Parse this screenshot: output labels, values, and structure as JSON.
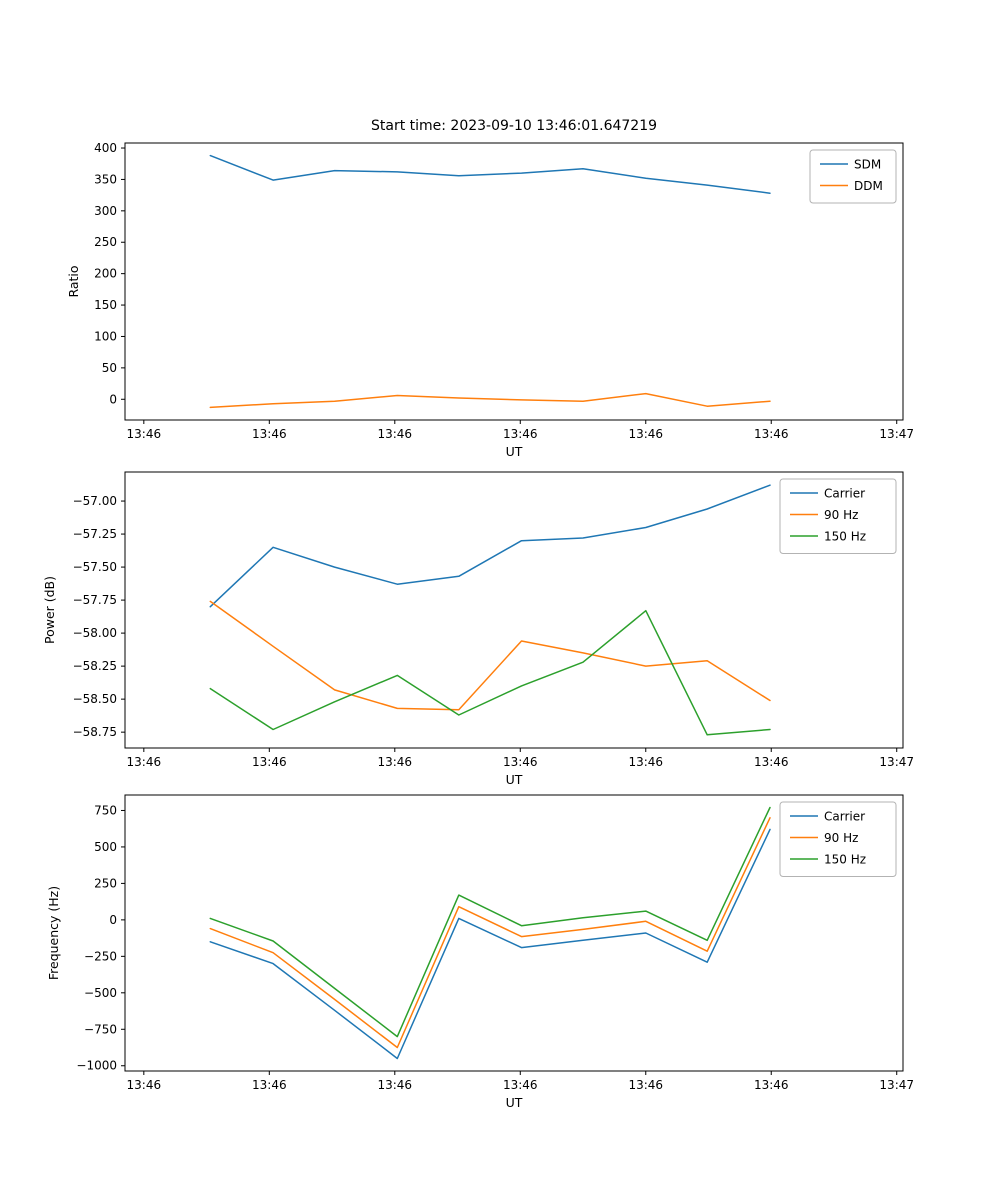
{
  "figure": {
    "background": "#ffffff"
  },
  "chart_data": [
    {
      "type": "line",
      "name": "ratio",
      "title": "Start time: 2023-09-10 13:46:01.647219",
      "xlabel": "UT",
      "ylabel": "Ratio",
      "x_units": "seconds after 13:46:00 UT",
      "x": [
        5.3,
        10.3,
        15.2,
        20.2,
        25.1,
        30.1,
        35.0,
        40.0,
        44.9,
        49.9
      ],
      "series": [
        {
          "name": "SDM",
          "color": "#1f77b4",
          "values": [
            388,
            349,
            364,
            362,
            356,
            360,
            367,
            352,
            341,
            328
          ]
        },
        {
          "name": "DDM",
          "color": "#ff7f0e",
          "values": [
            -13,
            -7,
            -3,
            6,
            2,
            -1,
            -3,
            9,
            -11,
            -3
          ]
        }
      ],
      "xlim": [
        -1.5,
        60.5
      ],
      "ylim": [
        -33,
        408
      ],
      "xticks": [
        {
          "v": 0,
          "label": "13:46"
        },
        {
          "v": 10,
          "label": "13:46"
        },
        {
          "v": 20,
          "label": "13:46"
        },
        {
          "v": 30,
          "label": "13:46"
        },
        {
          "v": 40,
          "label": "13:46"
        },
        {
          "v": 50,
          "label": "13:46"
        },
        {
          "v": 60,
          "label": "13:47"
        }
      ],
      "yticks": [
        {
          "v": 0,
          "label": "0"
        },
        {
          "v": 50,
          "label": "50"
        },
        {
          "v": 100,
          "label": "100"
        },
        {
          "v": 150,
          "label": "150"
        },
        {
          "v": 200,
          "label": "200"
        },
        {
          "v": 250,
          "label": "250"
        },
        {
          "v": 300,
          "label": "300"
        },
        {
          "v": 350,
          "label": "350"
        },
        {
          "v": 400,
          "label": "400"
        }
      ],
      "legend": {
        "position": "upper right",
        "labels": [
          "SDM",
          "DDM"
        ]
      },
      "grid": false
    },
    {
      "type": "line",
      "name": "power",
      "title": "",
      "xlabel": "UT",
      "ylabel": "Power (dB)",
      "x_units": "seconds after 13:46:00 UT",
      "x": [
        5.3,
        10.3,
        15.2,
        20.2,
        25.1,
        30.1,
        35.0,
        40.0,
        44.9,
        49.9
      ],
      "series": [
        {
          "name": "Carrier",
          "color": "#1f77b4",
          "values": [
            -57.8,
            -57.35,
            -57.5,
            -57.63,
            -57.57,
            -57.3,
            -57.28,
            -57.2,
            -57.06,
            -56.88
          ]
        },
        {
          "name": "90 Hz",
          "color": "#ff7f0e",
          "values": [
            -57.76,
            -58.1,
            -58.43,
            -58.57,
            -58.58,
            -58.06,
            -58.15,
            -58.25,
            -58.21,
            -58.51
          ]
        },
        {
          "name": "150 Hz",
          "color": "#2ca02c",
          "values": [
            -58.42,
            -58.73,
            -58.52,
            -58.32,
            -58.62,
            -58.4,
            -58.22,
            -57.83,
            -58.77,
            -58.73
          ]
        }
      ],
      "xlim": [
        -1.5,
        60.5
      ],
      "ylim": [
        -58.87,
        -56.78
      ],
      "xticks": [
        {
          "v": 0,
          "label": "13:46"
        },
        {
          "v": 10,
          "label": "13:46"
        },
        {
          "v": 20,
          "label": "13:46"
        },
        {
          "v": 30,
          "label": "13:46"
        },
        {
          "v": 40,
          "label": "13:46"
        },
        {
          "v": 50,
          "label": "13:46"
        },
        {
          "v": 60,
          "label": "13:47"
        }
      ],
      "yticks": [
        {
          "v": -57.0,
          "label": "−57.00"
        },
        {
          "v": -57.25,
          "label": "−57.25"
        },
        {
          "v": -57.5,
          "label": "−57.50"
        },
        {
          "v": -57.75,
          "label": "−57.75"
        },
        {
          "v": -58.0,
          "label": "−58.00"
        },
        {
          "v": -58.25,
          "label": "−58.25"
        },
        {
          "v": -58.5,
          "label": "−58.50"
        },
        {
          "v": -58.75,
          "label": "−58.75"
        }
      ],
      "legend": {
        "position": "upper right",
        "labels": [
          "Carrier",
          "90 Hz",
          "150 Hz"
        ]
      },
      "grid": false
    },
    {
      "type": "line",
      "name": "frequency",
      "title": "",
      "xlabel": "UT",
      "ylabel": "Frequency (Hz)",
      "x_units": "seconds after 13:46:00 UT",
      "x": [
        5.3,
        10.3,
        15.2,
        20.2,
        25.1,
        30.1,
        35.0,
        40.0,
        44.9,
        49.9
      ],
      "series": [
        {
          "name": "Carrier",
          "color": "#1f77b4",
          "values": [
            -150,
            -300,
            -620,
            -950,
            10,
            -190,
            -140,
            -90,
            -290,
            620
          ]
        },
        {
          "name": "90 Hz",
          "color": "#ff7f0e",
          "values": [
            -60,
            -225,
            -545,
            -875,
            90,
            -115,
            -65,
            -10,
            -215,
            700
          ]
        },
        {
          "name": "150 Hz",
          "color": "#2ca02c",
          "values": [
            10,
            -145,
            -470,
            -800,
            170,
            -40,
            15,
            60,
            -140,
            770
          ]
        }
      ],
      "xlim": [
        -1.5,
        60.5
      ],
      "ylim": [
        -1036,
        856
      ],
      "xticks": [
        {
          "v": 0,
          "label": "13:46"
        },
        {
          "v": 10,
          "label": "13:46"
        },
        {
          "v": 20,
          "label": "13:46"
        },
        {
          "v": 30,
          "label": "13:46"
        },
        {
          "v": 40,
          "label": "13:46"
        },
        {
          "v": 50,
          "label": "13:46"
        },
        {
          "v": 60,
          "label": "13:47"
        }
      ],
      "yticks": [
        {
          "v": -1000,
          "label": "−1000"
        },
        {
          "v": -750,
          "label": "−750"
        },
        {
          "v": -500,
          "label": "−500"
        },
        {
          "v": -250,
          "label": "−250"
        },
        {
          "v": 0,
          "label": "0"
        },
        {
          "v": 250,
          "label": "250"
        },
        {
          "v": 500,
          "label": "500"
        },
        {
          "v": 750,
          "label": "750"
        }
      ],
      "legend": {
        "position": "upper right",
        "labels": [
          "Carrier",
          "90 Hz",
          "150 Hz"
        ]
      },
      "grid": false
    }
  ]
}
